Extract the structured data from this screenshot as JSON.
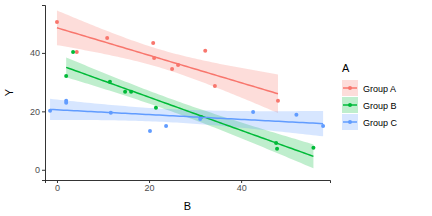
{
  "chart_data": {
    "type": "scatter",
    "xlabel": "B",
    "ylabel": "Y",
    "legend_title": "A",
    "xlim": [
      -2.6,
      59.3
    ],
    "xticks": [
      0,
      20,
      40
    ],
    "ylim": [
      -3.5,
      56.4
    ],
    "yticks": [
      0,
      20,
      40
    ],
    "series": [
      {
        "name": "Group A",
        "color": "#F8766D",
        "x": [
          0,
          10.9,
          20.9,
          21.1,
          4.3,
          25,
          26.3,
          32.2,
          34.3,
          48
        ],
        "values": [
          50.6,
          45.1,
          43.4,
          38.3,
          40.3,
          34.5,
          35.9,
          40.7,
          28.7,
          23.6
        ]
      },
      {
        "name": "Group B",
        "color": "#00BA38",
        "x": [
          3.5,
          2,
          11.5,
          14.8,
          16.1,
          21.5,
          31.3,
          47.6,
          47.8,
          55.7
        ],
        "values": [
          40.3,
          32.1,
          30.1,
          26.7,
          26.7,
          21.2,
          18.1,
          9.2,
          7.2,
          7.5
        ]
      },
      {
        "name": "Group C",
        "color": "#619CFF",
        "x": [
          -1.5,
          2,
          2,
          11.7,
          20.2,
          23.7,
          31.1,
          42.6,
          52,
          57.8
        ],
        "values": [
          20.2,
          23.6,
          22.9,
          19.5,
          13.3,
          15,
          17.4,
          19.8,
          18.8,
          15
        ]
      }
    ]
  }
}
